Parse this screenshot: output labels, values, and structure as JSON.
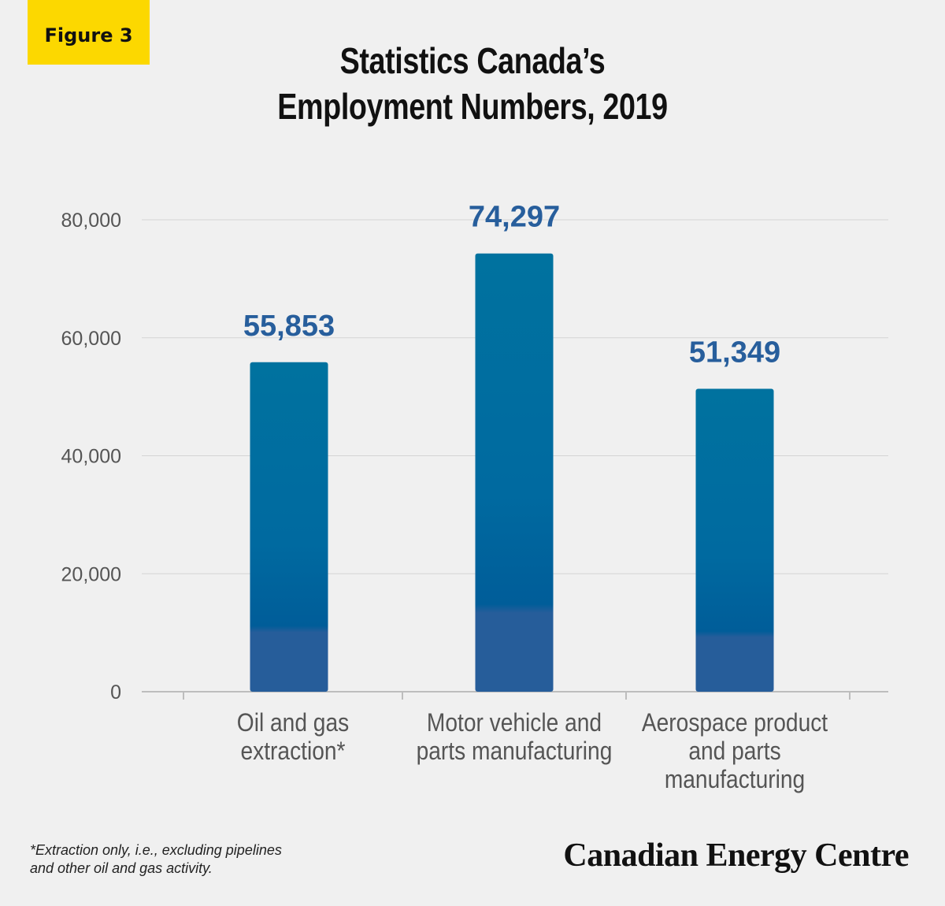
{
  "badge": "Figure 3",
  "title_lines": [
    "Statistics Canada’s",
    "Employment Numbers, 2019"
  ],
  "footnote_lines": [
    "*Extraction only, i.e., excluding pipelines",
    "and other oil and gas activity."
  ],
  "brand": "Canadian Energy Centre",
  "colors": {
    "bar_top": "#00729f",
    "bar_mid": "#005d99",
    "bar_bottom": "#265d9a",
    "value_label": "#275e9c",
    "badge": "#fcd800"
  },
  "chart_data": {
    "type": "bar",
    "title": "Statistics Canada’s Employment Numbers, 2019",
    "categories": [
      [
        "Oil and gas",
        "extraction*"
      ],
      [
        "Motor vehicle and",
        "parts manufacturing"
      ],
      [
        "Aerospace product",
        "and parts",
        "manufacturing"
      ]
    ],
    "values": [
      55853,
      74297,
      51349
    ],
    "value_labels": [
      "55,853",
      "74,297",
      "51,349"
    ],
    "ylim": [
      0,
      80000
    ],
    "yticks": [
      0,
      20000,
      40000,
      60000,
      80000
    ],
    "ytick_labels": [
      "0",
      "20,000",
      "40,000",
      "60,000",
      "80,000"
    ],
    "grid": true,
    "xlabel": "",
    "ylabel": ""
  }
}
